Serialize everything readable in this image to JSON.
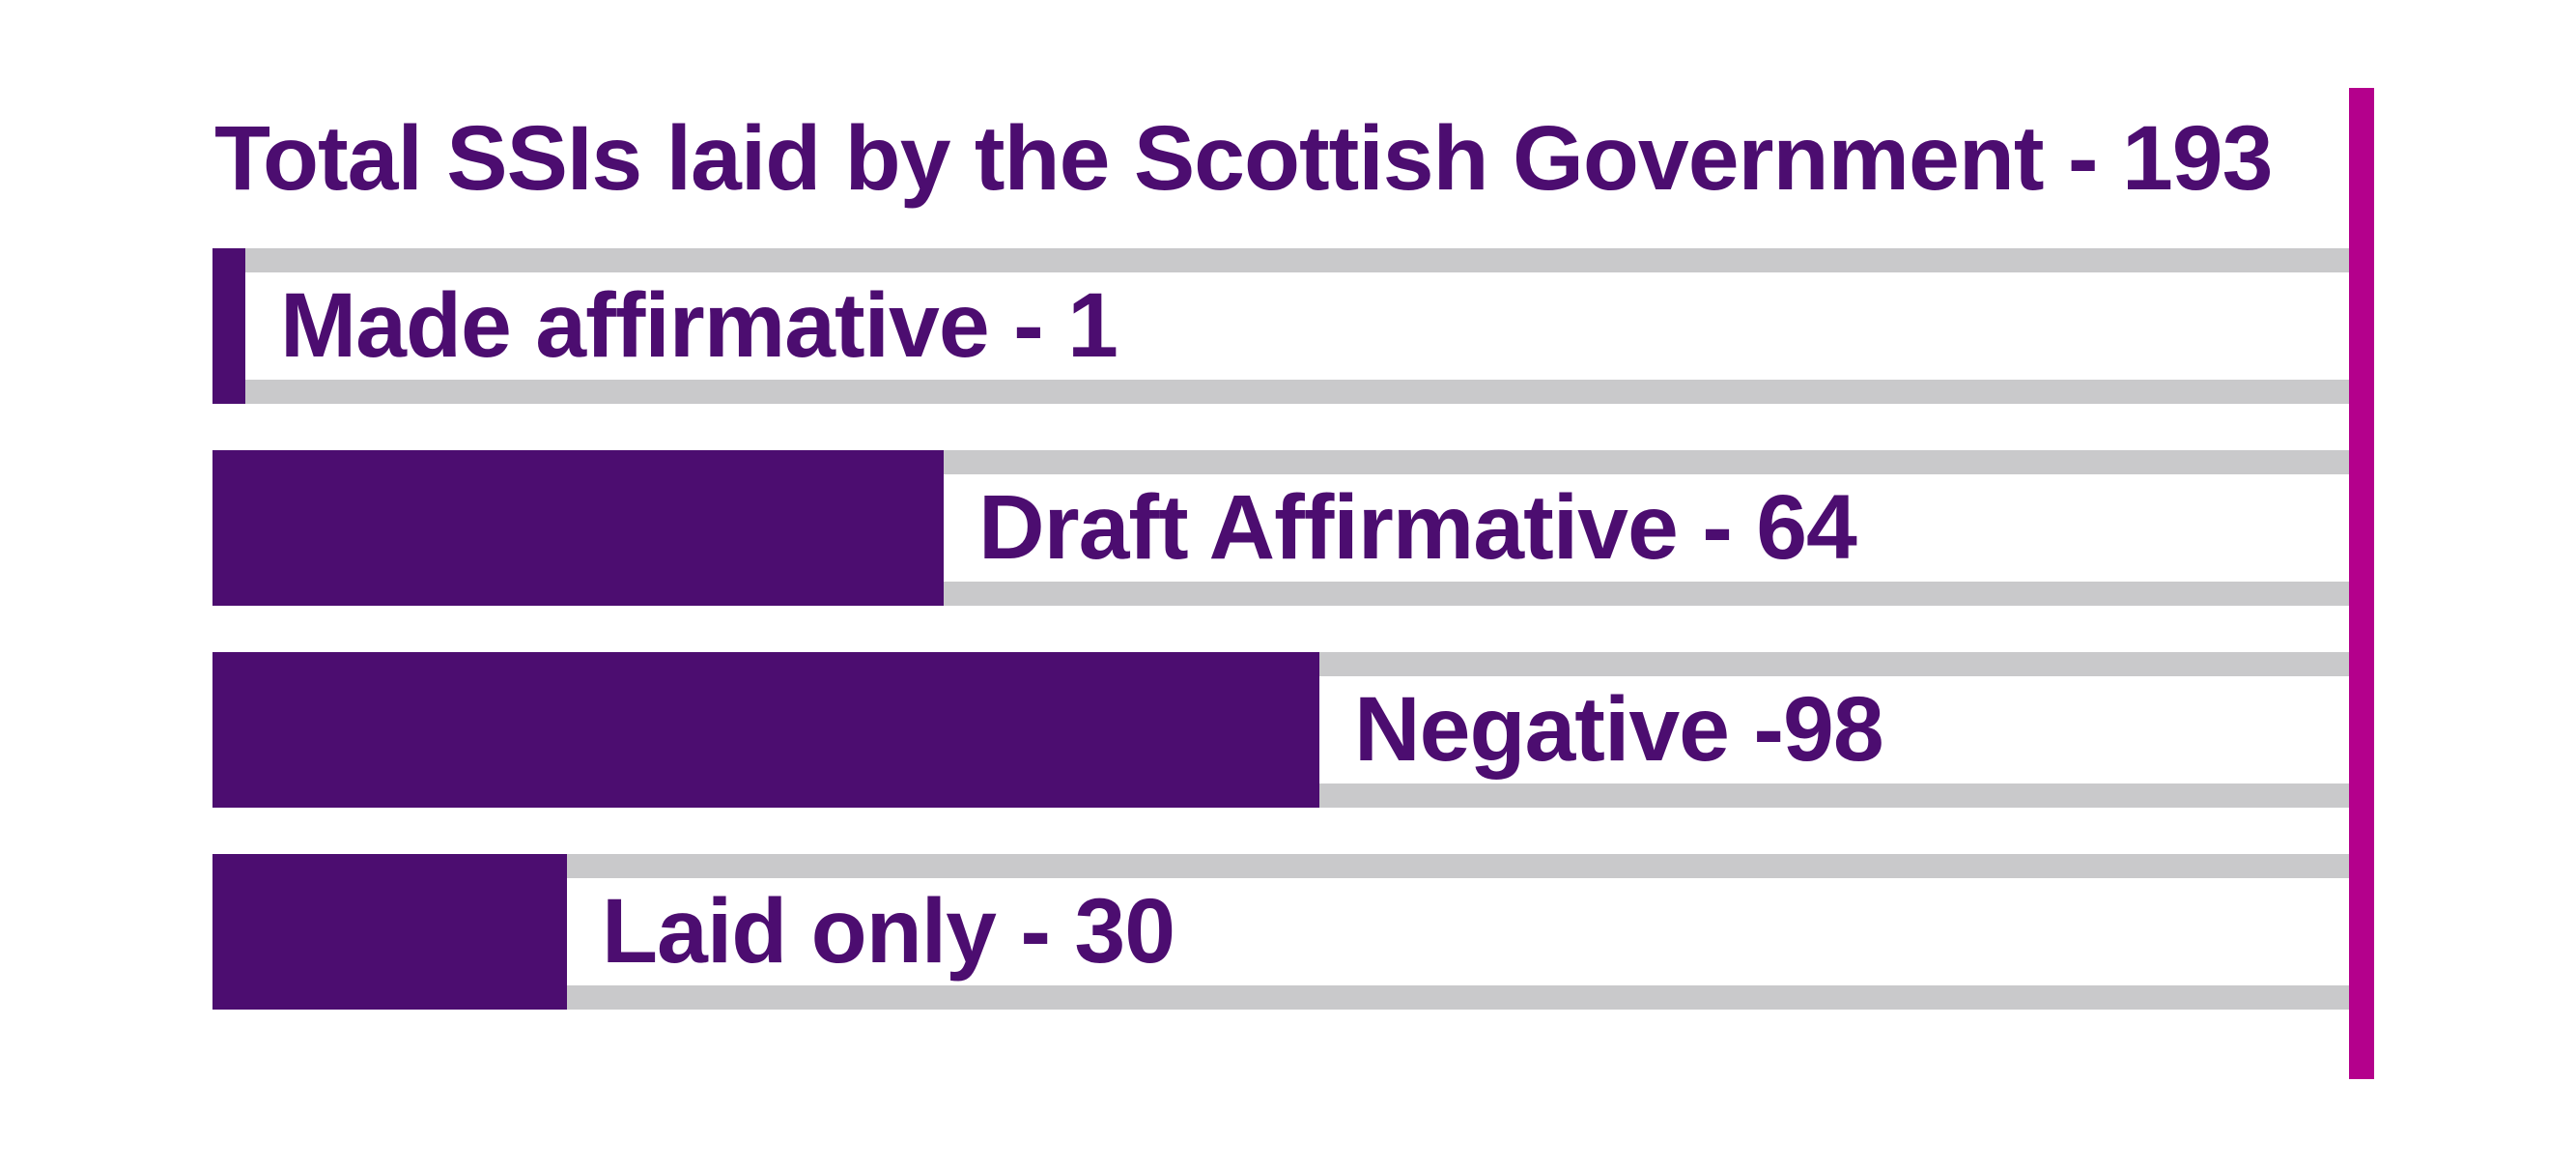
{
  "chart_data": {
    "type": "bar",
    "orientation": "horizontal",
    "title": "Total SSIs laid by the Scottish Government - 193",
    "total": {
      "label": "Total SSIs laid by the Scottish Government",
      "value": 193
    },
    "categories": [
      "Made affirmative",
      "Draft Affirmative",
      "Negative",
      "Laid only"
    ],
    "values": [
      1,
      64,
      98,
      30
    ],
    "bar_labels": [
      "Made affirmative - 1",
      "Draft Affirmative - 64",
      "Negative -98",
      "Laid only - 30"
    ],
    "xlim": [
      0,
      193
    ],
    "grid": "off",
    "legend": "none",
    "layout_hint": "single horizontal bar chart; value labels printed to the right of each bar inside a gray-edged track; vertical magenta rule closes the chart at the right edge",
    "colors": {
      "bar_fill": "#4C0D70",
      "title_text": "#4C0D70",
      "label_text": "#4C0D70",
      "track_gray": "#C9C9CB",
      "accent_rule": "#B4008C",
      "background": "#FFFFFF"
    }
  }
}
